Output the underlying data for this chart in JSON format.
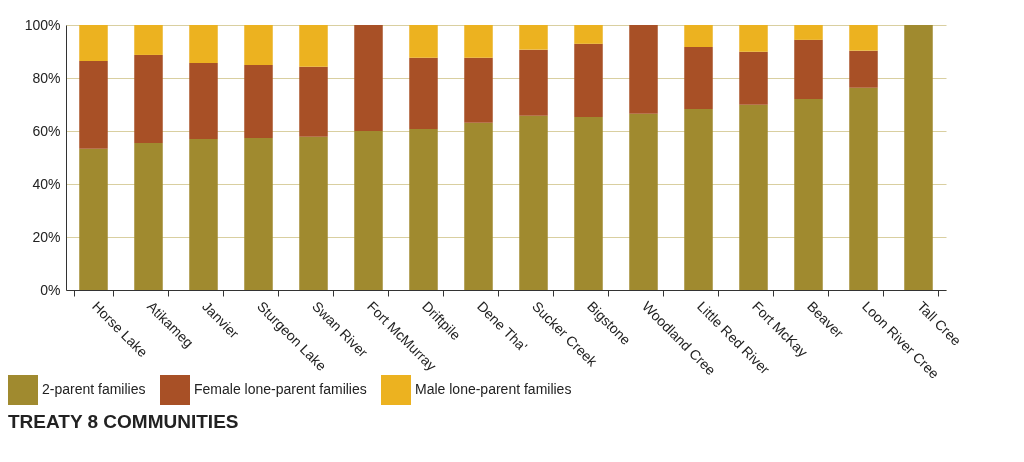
{
  "chart_data": {
    "type": "bar",
    "title": "TREATY 8 COMMUNITIES",
    "stacked": true,
    "categories": [
      "Horse Lake",
      "Atikameg",
      "Janvier",
      "Sturgeon Lake",
      "Swan River",
      "Fort McMurray",
      "Driftpile",
      "Dene Tha'",
      "Sucker Creek",
      "Bigstone",
      "Woodland Cree",
      "Little Red River",
      "Fort McKay",
      "Beaver",
      "Loon River Cree",
      "Tall Cree"
    ],
    "series": [
      {
        "name": "2-parent families",
        "color": "#a08a2f",
        "values": [
          53.3,
          55.5,
          57,
          57.4,
          57.8,
          60,
          60.8,
          63.1,
          65.8,
          65.3,
          66.5,
          68.3,
          69.9,
          72.1,
          76.3,
          100
        ]
      },
      {
        "name": "Female lone-parent families",
        "color": "#a85026",
        "values": [
          33.1,
          33.2,
          28.7,
          27.5,
          26.4,
          40,
          26.8,
          24.5,
          24.9,
          27.6,
          33.5,
          23.4,
          20,
          22.3,
          14,
          0
        ]
      },
      {
        "name": "Male lone-parent families",
        "color": "#ecb220",
        "values": [
          13.6,
          11.3,
          14.3,
          15.1,
          15.8,
          0,
          12.4,
          12.4,
          9.3,
          7.1,
          0,
          8.3,
          10.1,
          5.6,
          9.7,
          0
        ]
      }
    ],
    "ylim": [
      0,
      100
    ],
    "yticks": [
      {
        "value": 0,
        "label": "0%"
      },
      {
        "value": 20,
        "label": "20%"
      },
      {
        "value": 40,
        "label": "40%"
      },
      {
        "value": 60,
        "label": "60%"
      },
      {
        "value": 80,
        "label": "80%"
      },
      {
        "value": 100,
        "label": "100%"
      }
    ],
    "grid": "y",
    "legend": "bottom left"
  }
}
